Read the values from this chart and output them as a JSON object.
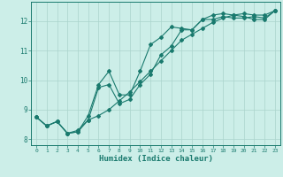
{
  "title": "",
  "xlabel": "Humidex (Indice chaleur)",
  "ylabel": "",
  "background_color": "#cceee8",
  "line_color": "#1a7a6e",
  "grid_color": "#aad4cc",
  "xlim": [
    -0.5,
    23.5
  ],
  "ylim": [
    7.8,
    12.65
  ],
  "xticks": [
    0,
    1,
    2,
    3,
    4,
    5,
    6,
    7,
    8,
    9,
    10,
    11,
    12,
    13,
    14,
    15,
    16,
    17,
    18,
    19,
    20,
    21,
    22,
    23
  ],
  "yticks": [
    8,
    9,
    10,
    11,
    12
  ],
  "line1_x": [
    0,
    1,
    2,
    3,
    4,
    5,
    6,
    7,
    8,
    9,
    10,
    11,
    12,
    13,
    14,
    15,
    16,
    17,
    18,
    19,
    20,
    21,
    22,
    23
  ],
  "line1_y": [
    8.75,
    8.45,
    8.6,
    8.2,
    8.25,
    8.65,
    9.75,
    9.85,
    9.2,
    9.35,
    9.85,
    10.2,
    10.85,
    11.15,
    11.7,
    11.7,
    12.05,
    12.05,
    12.15,
    12.1,
    12.1,
    12.15,
    12.1,
    12.35
  ],
  "line2_x": [
    0,
    1,
    2,
    3,
    4,
    5,
    6,
    7,
    8,
    9,
    10,
    11,
    12,
    13,
    14,
    15,
    16,
    17,
    18,
    19,
    20,
    21,
    22,
    23
  ],
  "line2_y": [
    8.75,
    8.45,
    8.6,
    8.2,
    8.25,
    8.8,
    9.85,
    10.3,
    9.5,
    9.5,
    10.3,
    11.2,
    11.45,
    11.8,
    11.75,
    11.7,
    12.05,
    12.2,
    12.25,
    12.2,
    12.15,
    12.05,
    12.05,
    12.35
  ],
  "line3_x": [
    0,
    1,
    2,
    3,
    4,
    5,
    6,
    7,
    8,
    9,
    10,
    11,
    12,
    13,
    14,
    15,
    16,
    17,
    18,
    19,
    20,
    21,
    22,
    23
  ],
  "line3_y": [
    8.75,
    8.45,
    8.6,
    8.2,
    8.3,
    8.65,
    8.8,
    9.0,
    9.3,
    9.6,
    9.95,
    10.3,
    10.65,
    11.0,
    11.35,
    11.55,
    11.75,
    11.95,
    12.1,
    12.2,
    12.25,
    12.2,
    12.2,
    12.35
  ]
}
